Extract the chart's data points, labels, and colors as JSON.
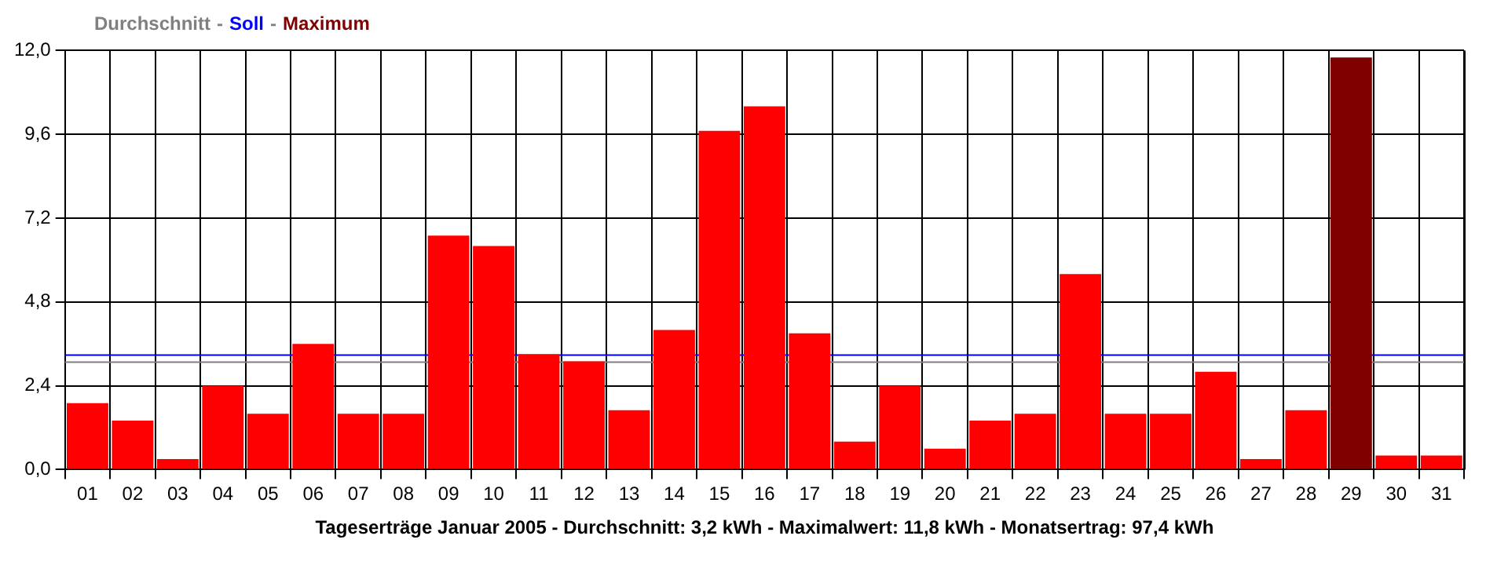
{
  "chart_data": {
    "type": "bar",
    "xlabel": "Tageserträge Januar 2005 - Durchschnitt: 3,2 kWh - Maximalwert: 11,8 kWh - Monatsertrag: 97,4 kWh",
    "categories": [
      "01",
      "02",
      "03",
      "04",
      "05",
      "06",
      "07",
      "08",
      "09",
      "10",
      "11",
      "12",
      "13",
      "14",
      "15",
      "16",
      "17",
      "18",
      "19",
      "20",
      "21",
      "22",
      "23",
      "24",
      "25",
      "26",
      "27",
      "28",
      "29",
      "30",
      "31"
    ],
    "values": [
      1.9,
      1.4,
      0.3,
      2.4,
      1.6,
      3.6,
      1.6,
      1.6,
      6.7,
      6.4,
      3.3,
      3.1,
      1.7,
      4.0,
      9.7,
      10.4,
      3.9,
      0.8,
      2.4,
      0.6,
      1.4,
      1.6,
      5.6,
      1.6,
      1.6,
      2.8,
      0.3,
      1.7,
      11.8,
      0.4,
      0.4
    ],
    "colors": [
      "#ff0000",
      "#ff0000",
      "#ff0000",
      "#ff0000",
      "#ff0000",
      "#ff0000",
      "#ff0000",
      "#ff0000",
      "#ff0000",
      "#ff0000",
      "#ff0000",
      "#ff0000",
      "#ff0000",
      "#ff0000",
      "#ff0000",
      "#ff0000",
      "#ff0000",
      "#ff0000",
      "#ff0000",
      "#ff0000",
      "#ff0000",
      "#ff0000",
      "#ff0000",
      "#ff0000",
      "#ff0000",
      "#ff0000",
      "#ff0000",
      "#ff0000",
      "#800000",
      "#ff0000",
      "#ff0000"
    ],
    "ylim": [
      0,
      12
    ],
    "yticks": [
      {
        "value": 0,
        "label": "0,0"
      },
      {
        "value": 2.4,
        "label": "2,4"
      },
      {
        "value": 4.8,
        "label": "4,8"
      },
      {
        "value": 7.2,
        "label": "7,2"
      },
      {
        "value": 9.6,
        "label": "9,6"
      },
      {
        "value": 12,
        "label": "12,0"
      }
    ],
    "ref_lines": [
      {
        "axis": "y",
        "value": 3.1,
        "label": "Durchschnitt",
        "color": "#808080"
      },
      {
        "axis": "y",
        "value": 3.3,
        "label": "Soll",
        "color": "#0000ff"
      }
    ],
    "annotations": [
      "-",
      "-",
      "Maximum"
    ],
    "grid": true,
    "legend": "top left"
  }
}
